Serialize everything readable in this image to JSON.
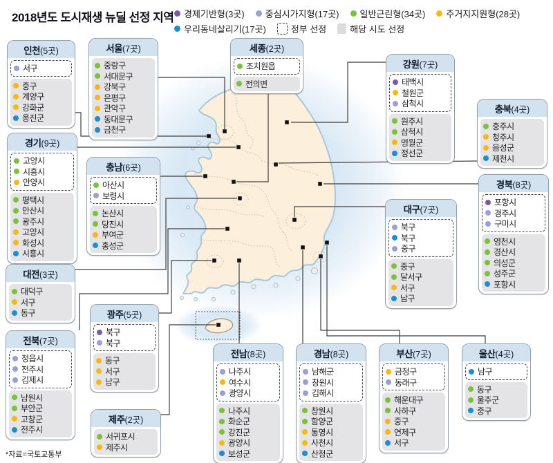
{
  "title": "2018년도 도시재생 뉴딜 선정 지역",
  "source": "*자료=국토교통부",
  "legend": {
    "items": [
      {
        "key": "economic",
        "label": "경제기반형(3곳)",
        "color": "#7e57a5"
      },
      {
        "key": "center",
        "label": "중심시가지형(17곳)",
        "color": "#9b9fd6"
      },
      {
        "key": "general",
        "label": "일반근린형(34곳)",
        "color": "#7cc13e"
      },
      {
        "key": "residential",
        "label": "주거지지원형(28곳)",
        "color": "#f7b718"
      },
      {
        "key": "village",
        "label": "우리동네살리기(17곳)",
        "color": "#1d8ecf"
      }
    ],
    "gov_label": "정부 선정",
    "local_label": "해당 시도 선정"
  },
  "regions": [
    {
      "id": "incheon",
      "name": "인천",
      "count": "(5곳)",
      "sections": [
        {
          "type": "gov",
          "items": [
            {
              "cat": "center",
              "label": "서구"
            }
          ]
        },
        {
          "type": "local",
          "items": [
            {
              "cat": "residential",
              "label": "중구"
            },
            {
              "cat": "residential",
              "label": "계양구"
            },
            {
              "cat": "residential",
              "label": "강화군"
            },
            {
              "cat": "village",
              "label": "옹진군"
            }
          ]
        }
      ]
    },
    {
      "id": "seoul",
      "name": "서울",
      "count": "(7곳)",
      "sections": [
        {
          "type": "local",
          "items": [
            {
              "cat": "general",
              "label": "중랑구"
            },
            {
              "cat": "general",
              "label": "서대문구"
            },
            {
              "cat": "residential",
              "label": "강북구"
            },
            {
              "cat": "residential",
              "label": "은평구"
            },
            {
              "cat": "residential",
              "label": "관악구"
            },
            {
              "cat": "village",
              "label": "동대문구"
            },
            {
              "cat": "village",
              "label": "금천구"
            }
          ]
        }
      ]
    },
    {
      "id": "sejong",
      "name": "세종",
      "count": "(2곳)",
      "sections": [
        {
          "type": "gov",
          "items": [
            {
              "cat": "general",
              "label": "조치원읍"
            }
          ]
        },
        {
          "type": "local",
          "items": [
            {
              "cat": "general",
              "label": "전의면"
            }
          ]
        }
      ]
    },
    {
      "id": "gangwon",
      "name": "강원",
      "count": "(7곳)",
      "sections": [
        {
          "type": "gov",
          "items": [
            {
              "cat": "economic",
              "label": "태백시"
            },
            {
              "cat": "residential",
              "label": "철원군"
            },
            {
              "cat": "center",
              "label": "삼척시"
            }
          ]
        },
        {
          "type": "local",
          "items": [
            {
              "cat": "general",
              "label": "원주시"
            },
            {
              "cat": "general",
              "label": "삼척시"
            },
            {
              "cat": "residential",
              "label": "영월군"
            },
            {
              "cat": "village",
              "label": "정선군"
            }
          ]
        }
      ]
    },
    {
      "id": "chungbuk",
      "name": "충북",
      "count": "(4곳)",
      "sections": [
        {
          "type": "local",
          "items": [
            {
              "cat": "general",
              "label": "충주시"
            },
            {
              "cat": "residential",
              "label": "청주시"
            },
            {
              "cat": "residential",
              "label": "음성군"
            },
            {
              "cat": "village",
              "label": "제천시"
            }
          ]
        }
      ]
    },
    {
      "id": "gyeonggi",
      "name": "경기",
      "count": "(9곳)",
      "sections": [
        {
          "type": "gov",
          "items": [
            {
              "cat": "general",
              "label": "고양시"
            },
            {
              "cat": "general",
              "label": "시흥시"
            },
            {
              "cat": "residential",
              "label": "안양시"
            }
          ]
        },
        {
          "type": "local",
          "items": [
            {
              "cat": "general",
              "label": "평택시"
            },
            {
              "cat": "general",
              "label": "안산시"
            },
            {
              "cat": "general",
              "label": "광주시"
            },
            {
              "cat": "residential",
              "label": "고양시"
            },
            {
              "cat": "residential",
              "label": "화성시"
            },
            {
              "cat": "village",
              "label": "시흥시"
            }
          ]
        }
      ]
    },
    {
      "id": "chungnam",
      "name": "충남",
      "count": "(6곳)",
      "sections": [
        {
          "type": "gov",
          "items": [
            {
              "cat": "general",
              "label": "아산시"
            },
            {
              "cat": "center",
              "label": "보령시"
            }
          ]
        },
        {
          "type": "local",
          "items": [
            {
              "cat": "general",
              "label": "논산시"
            },
            {
              "cat": "general",
              "label": "당진시"
            },
            {
              "cat": "residential",
              "label": "부여군"
            },
            {
              "cat": "village",
              "label": "홍성군"
            }
          ]
        }
      ]
    },
    {
      "id": "gyeongbuk",
      "name": "경북",
      "count": "(8곳)",
      "sections": [
        {
          "type": "gov",
          "items": [
            {
              "cat": "economic",
              "label": "포항시"
            },
            {
              "cat": "center",
              "label": "경주시"
            },
            {
              "cat": "center",
              "label": "구미시"
            }
          ]
        },
        {
          "type": "local",
          "items": [
            {
              "cat": "general",
              "label": "영천시"
            },
            {
              "cat": "general",
              "label": "경산시"
            },
            {
              "cat": "general",
              "label": "의성군"
            },
            {
              "cat": "general",
              "label": "성주군"
            },
            {
              "cat": "village",
              "label": "포항시"
            }
          ]
        }
      ]
    },
    {
      "id": "daegu",
      "name": "대구",
      "count": "(7곳)",
      "sections": [
        {
          "type": "gov",
          "items": [
            {
              "cat": "center",
              "label": "북구"
            },
            {
              "cat": "village",
              "label": "북구"
            },
            {
              "cat": "center",
              "label": "중구"
            }
          ]
        },
        {
          "type": "local",
          "items": [
            {
              "cat": "general",
              "label": "중구"
            },
            {
              "cat": "general",
              "label": "달서구"
            },
            {
              "cat": "residential",
              "label": "서구"
            },
            {
              "cat": "village",
              "label": "남구"
            }
          ]
        }
      ]
    },
    {
      "id": "daejeon",
      "name": "대전",
      "count": "(3곳)",
      "sections": [
        {
          "type": "local",
          "items": [
            {
              "cat": "general",
              "label": "대덕구"
            },
            {
              "cat": "residential",
              "label": "서구"
            },
            {
              "cat": "village",
              "label": "동구"
            }
          ]
        }
      ]
    },
    {
      "id": "gwangju",
      "name": "광주",
      "count": "(5곳)",
      "sections": [
        {
          "type": "gov",
          "items": [
            {
              "cat": "economic",
              "label": "북구"
            },
            {
              "cat": "center",
              "label": "북구"
            }
          ]
        },
        {
          "type": "local",
          "items": [
            {
              "cat": "residential",
              "label": "동구"
            },
            {
              "cat": "residential",
              "label": "서구"
            },
            {
              "cat": "residential",
              "label": "남구"
            }
          ]
        }
      ]
    },
    {
      "id": "jeonbuk",
      "name": "전북",
      "count": "(7곳)",
      "sections": [
        {
          "type": "gov",
          "items": [
            {
              "cat": "center",
              "label": "정읍시"
            },
            {
              "cat": "center",
              "label": "전주시"
            },
            {
              "cat": "center",
              "label": "김제시"
            }
          ]
        },
        {
          "type": "local",
          "items": [
            {
              "cat": "general",
              "label": "남원시"
            },
            {
              "cat": "general",
              "label": "부안군"
            },
            {
              "cat": "residential",
              "label": "고창군"
            },
            {
              "cat": "village",
              "label": "전주시"
            }
          ]
        }
      ]
    },
    {
      "id": "jeonnam",
      "name": "전남",
      "count": "(8곳)",
      "sections": [
        {
          "type": "gov",
          "items": [
            {
              "cat": "center",
              "label": "나주시"
            },
            {
              "cat": "residential",
              "label": "여수시"
            },
            {
              "cat": "center",
              "label": "광양시"
            }
          ]
        },
        {
          "type": "local",
          "items": [
            {
              "cat": "general",
              "label": "나주시"
            },
            {
              "cat": "general",
              "label": "화순군"
            },
            {
              "cat": "general",
              "label": "강진군"
            },
            {
              "cat": "residential",
              "label": "광양시"
            },
            {
              "cat": "village",
              "label": "보성군"
            }
          ]
        }
      ]
    },
    {
      "id": "gyeongnam",
      "name": "경남",
      "count": "(8곳)",
      "sections": [
        {
          "type": "gov",
          "items": [
            {
              "cat": "center",
              "label": "남해군"
            },
            {
              "cat": "center",
              "label": "창원시"
            },
            {
              "cat": "center",
              "label": "김해시"
            }
          ]
        },
        {
          "type": "local",
          "items": [
            {
              "cat": "general",
              "label": "창원시"
            },
            {
              "cat": "general",
              "label": "함양군"
            },
            {
              "cat": "residential",
              "label": "통영시"
            },
            {
              "cat": "residential",
              "label": "사천시"
            },
            {
              "cat": "village",
              "label": "산청군"
            }
          ]
        }
      ]
    },
    {
      "id": "busan",
      "name": "부산",
      "count": "(7곳)",
      "sections": [
        {
          "type": "gov",
          "items": [
            {
              "cat": "residential",
              "label": "금정구"
            },
            {
              "cat": "center",
              "label": "동래구"
            }
          ]
        },
        {
          "type": "local",
          "items": [
            {
              "cat": "general",
              "label": "해운대구"
            },
            {
              "cat": "general",
              "label": "사하구"
            },
            {
              "cat": "residential",
              "label": "중구"
            },
            {
              "cat": "residential",
              "label": "연제구"
            },
            {
              "cat": "village",
              "label": "서구"
            }
          ]
        }
      ]
    },
    {
      "id": "ulsan",
      "name": "울산",
      "count": "(4곳)",
      "sections": [
        {
          "type": "gov",
          "items": [
            {
              "cat": "village",
              "label": "남구"
            }
          ]
        },
        {
          "type": "local",
          "items": [
            {
              "cat": "general",
              "label": "동구"
            },
            {
              "cat": "general",
              "label": "울주군"
            },
            {
              "cat": "village",
              "label": "중구"
            }
          ]
        }
      ]
    },
    {
      "id": "jeju",
      "name": "제주",
      "count": "(2곳)",
      "sections": [
        {
          "type": "local",
          "items": [
            {
              "cat": "general",
              "label": "서귀포시"
            },
            {
              "cat": "residential",
              "label": "제주시"
            }
          ]
        }
      ]
    }
  ]
}
